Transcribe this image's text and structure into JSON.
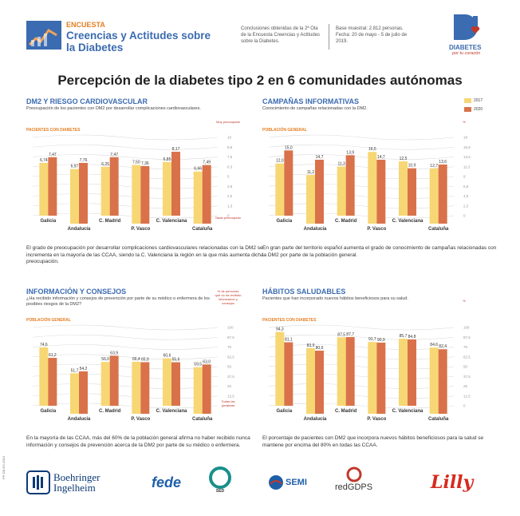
{
  "header": {
    "encuesta": "ENCUESTA",
    "title": "Creencias y Actitudes sobre la Diabetes",
    "note": "Conclusiones obtenidas de la 2ª Ola de la Encuesta Creencias y Actitudes sobre la Diabetes.",
    "base": "Base muestral: 2.812 personas. Fecha: 20 de mayo - 5 de julio de 2019.",
    "logo_text": "DIABETES",
    "logo_tagline": "por tu corazón"
  },
  "main_title": "Percepción de la diabetes tipo 2 en 6 comunidades autónomas",
  "legend": {
    "items": [
      {
        "label": "2017",
        "color": "#f7d774"
      },
      {
        "label": "2020",
        "color": "#d9724a"
      }
    ]
  },
  "colors": {
    "bar2017": "#f7d774",
    "bar2020": "#d9724a",
    "title": "#3b6bb0",
    "accent": "#e67e22"
  },
  "chart_data": [
    {
      "type": "bar",
      "title": "DM2 Y RIESGO CARDIOVASCULAR",
      "subtitle": "Preocupación de los pacientes con DM2 por desarrollar complicaciones cardiovasculares.",
      "group": "PACIENTES CON DIABETES",
      "categories": [
        "Galicia",
        "Andalucía",
        "C. Madrid",
        "P. Vasco",
        "C. Valenciana",
        "Cataluña"
      ],
      "series": [
        {
          "name": "2017",
          "values": [
            6.74,
            6.97,
            6.25,
            7.5,
            6.85,
            6.66
          ]
        },
        {
          "name": "2020",
          "values": [
            7.47,
            7.76,
            7.47,
            7.36,
            8.17,
            7.49
          ]
        }
      ],
      "ylim": [
        0,
        10
      ],
      "labels": [
        "6,74",
        "7,47",
        "6,97",
        "7,76",
        "6,25",
        "7,47",
        "7,50",
        "7,36",
        "6,85",
        "8,17",
        "6,66",
        "7,49"
      ],
      "note_top": "Muy preocupado",
      "note_bottom": "Nada preocupado",
      "description": "El grado de preocupación por desarrollar complicaciones cardiovasculares relacionadas con la DM2 se incrementa en la mayoría de las CCAA, siendo la C. Valenciana la región en la que más aumenta dicha preocupación."
    },
    {
      "type": "bar",
      "title": "CAMPAÑAS INFORMATIVAS",
      "subtitle": "Conocimiento de campañas relacionadas con la DM2.",
      "group": "POBLACIÓN GENERAL",
      "categories": [
        "Galicia",
        "Andalucía",
        "C. Madrid",
        "P. Vasco",
        "C. Valenciana",
        "Cataluña"
      ],
      "series": [
        {
          "name": "2017",
          "values": [
            12.0,
            11.2,
            11.3,
            16.5,
            12.5,
            12.7
          ]
        },
        {
          "name": "2020",
          "values": [
            15.0,
            14.7,
            13.9,
            14.7,
            10.9,
            13.6
          ]
        }
      ],
      "ylim": [
        0,
        18
      ],
      "labels": [
        "12,0",
        "15,0",
        "11,2",
        "14,7",
        "11,3",
        "13,9",
        "16,5",
        "14,7",
        "12,5",
        "10,9",
        "12,7",
        "13,6"
      ],
      "unit": "%",
      "description": "En gran parte del territorio español aumenta el grado de conocimiento de campañas relacionadas con la DM2 por parte de la población general."
    },
    {
      "type": "bar",
      "title": "INFORMACIÓN Y CONSEJOS",
      "subtitle": "¿Ha recibido información y consejos de prevención por parte de su médico o enfermera de los posibles riesgos de la DM2?",
      "group": "POBLACIÓN GENERAL",
      "categories": [
        "Galicia",
        "Andalucía",
        "C. Madrid",
        "P. Vasco",
        "C. Valenciana",
        "Cataluña"
      ],
      "series": [
        {
          "name": "2017",
          "values": [
            74.6,
            51.7,
            56.0,
            66.4,
            60.6,
            59.5
          ]
        },
        {
          "name": "2020",
          "values": [
            61.2,
            54.2,
            63.9,
            65.9,
            55.6,
            63.0
          ]
        }
      ],
      "ylim": [
        0,
        100
      ],
      "labels": [
        "74,6",
        "61,2",
        "51,7",
        "54,2",
        "56,0",
        "63,9",
        "66,4",
        "65,9",
        "60,6",
        "55,6",
        "59,5",
        "63,0"
      ],
      "unit": "%",
      "note_top": "% de personas que no ha recibido información y consejos",
      "note_bottom": "Todas las personas",
      "description": "En la mayoría de las CCAA, más del 60% de la población general afirma no haber recibido nunca información y consejos de prevención acerca de la DM2 por parte de su médico o enfermera."
    },
    {
      "type": "bar",
      "title": "HÁBITOS SALUDABLES",
      "subtitle": "Pacientes que han incorporado nuevos hábitos beneficiosos para su salud.",
      "group": "PACIENTES CON DIABETES",
      "categories": [
        "Galicia",
        "Andalucía",
        "C. Madrid",
        "P. Vasco",
        "C. Valenciana",
        "Cataluña"
      ],
      "series": [
        {
          "name": "2017",
          "values": [
            94.3,
            83.9,
            87.5,
            91.7,
            85.7,
            84.6
          ]
        },
        {
          "name": "2020",
          "values": [
            81.1,
            80.6,
            87.7,
            90.9,
            84.8,
            82.4
          ]
        }
      ],
      "ylim": [
        0,
        100
      ],
      "labels": [
        "94,3",
        "81,1",
        "83,9",
        "80,6",
        "87,5",
        "87,7",
        "91,7",
        "90,9",
        "85,7",
        "84,8",
        "84,6",
        "82,4"
      ],
      "unit": "%",
      "description": "El porcentaje de pacientes con DM2 que incorpora nuevos hábitos beneficiosos para la salud se mantiene por encima del 80% en todas las CCAA."
    }
  ],
  "footer": {
    "boehringer": "Boehringer Ingelheim",
    "fede": "fede",
    "sed": "SED",
    "semi": "SEMI",
    "redgdps": "redGDPS",
    "lilly": "Lilly",
    "code": "PP-DB-ES-0010"
  }
}
